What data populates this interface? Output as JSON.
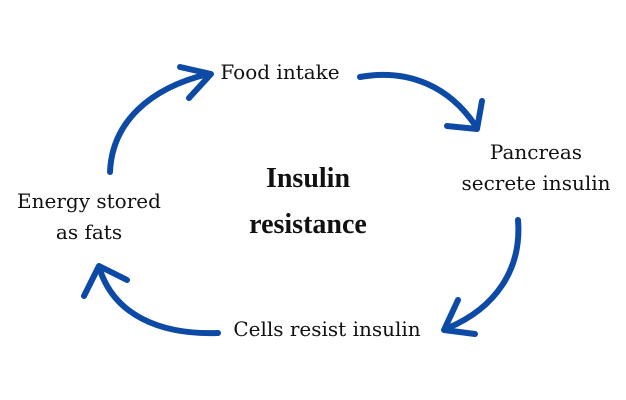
{
  "diagram": {
    "title_lines": [
      "Insulin",
      "resistance"
    ],
    "nodes": {
      "food_intake": {
        "lines": [
          "Food intake"
        ]
      },
      "pancreas": {
        "lines": [
          "Pancreas",
          "secrete insulin"
        ]
      },
      "cells_resist": {
        "lines": [
          "Cells resist insulin"
        ]
      },
      "energy_stored": {
        "lines": [
          "Energy stored",
          "as fats"
        ]
      }
    },
    "arrow_color": "#0d4aa6",
    "cycle_direction": "clockwise",
    "connections": [
      {
        "from": "food_intake",
        "to": "pancreas"
      },
      {
        "from": "pancreas",
        "to": "cells_resist"
      },
      {
        "from": "cells_resist",
        "to": "energy_stored"
      },
      {
        "from": "energy_stored",
        "to": "food_intake"
      }
    ]
  }
}
